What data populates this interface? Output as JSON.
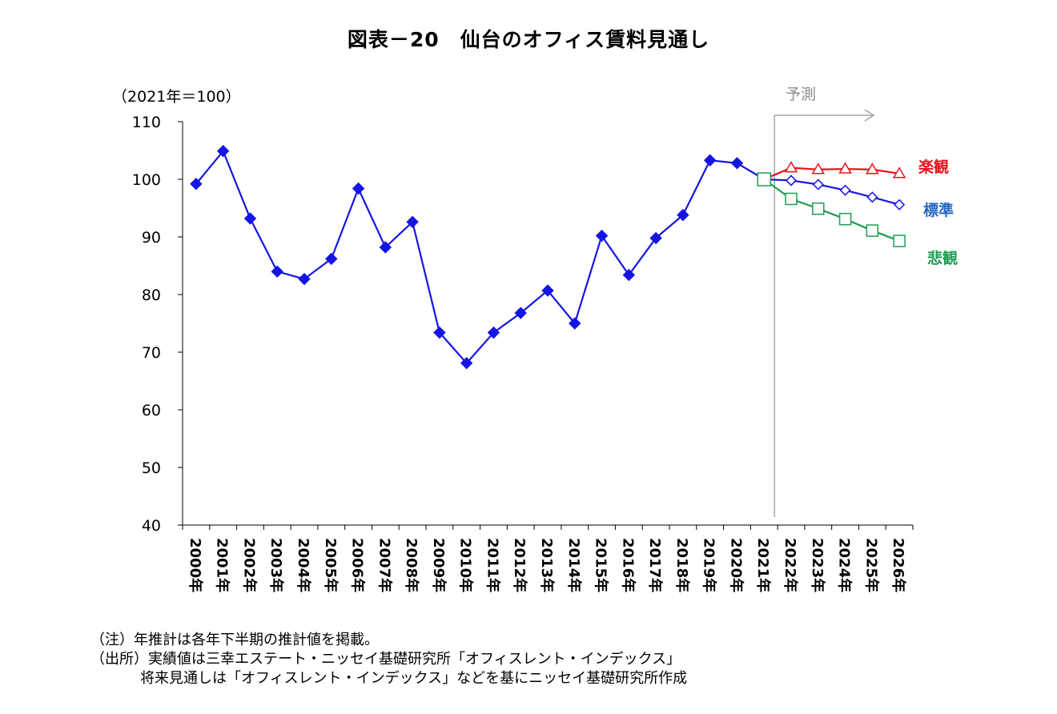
{
  "title": "図表－20　仙台のオフィス賃料見通し",
  "unit_label": "（2021年＝100）",
  "forecast_label": "予測",
  "notes": [
    "（注）年推計は各年下半期の推計値を掲載。",
    "（出所）実績値は三幸エステート・ニッセイ基礎研究所「オフィスレント・インデックス」",
    "将来見通しは「オフィスレント・インデックス」などを基にニッセイ基礎研究所作成"
  ],
  "colors": {
    "actual": "#1414e6",
    "optimistic": "#e8121b",
    "standard": "#1414e6",
    "pessimistic": "#1e9e52",
    "standard_label": "#2466c4",
    "forecast_line": "#a6a6a6"
  },
  "chart_data": {
    "type": "line",
    "categories": [
      "2000年",
      "2001年",
      "2002年",
      "2003年",
      "2004年",
      "2005年",
      "2006年",
      "2007年",
      "2008年",
      "2009年",
      "2010年",
      "2011年",
      "2012年",
      "2013年",
      "2014年",
      "2015年",
      "2016年",
      "2017年",
      "2018年",
      "2019年",
      "2020年",
      "2021年",
      "2022年",
      "2023年",
      "2024年",
      "2025年",
      "2026年"
    ],
    "ylim": [
      40,
      110
    ],
    "yticks": [
      40,
      50,
      60,
      70,
      80,
      90,
      100,
      110
    ],
    "grid": false,
    "series": [
      {
        "key": "actual",
        "marker": "diamond-filled",
        "x": [
          "2000年",
          "2001年",
          "2002年",
          "2003年",
          "2004年",
          "2005年",
          "2006年",
          "2007年",
          "2008年",
          "2009年",
          "2010年",
          "2011年",
          "2012年",
          "2013年",
          "2014年",
          "2015年",
          "2016年",
          "2017年",
          "2018年",
          "2019年",
          "2020年",
          "2021年"
        ],
        "values": [
          99.2,
          104.9,
          93.2,
          84.0,
          82.7,
          86.2,
          98.4,
          88.2,
          92.6,
          73.4,
          68.1,
          73.4,
          76.8,
          80.7,
          75.0,
          90.2,
          83.4,
          89.8,
          93.8,
          103.3,
          102.8,
          100.0
        ]
      },
      {
        "key": "optimistic",
        "name": "楽観",
        "marker": "triangle-open",
        "x": [
          "2021年",
          "2022年",
          "2023年",
          "2024年",
          "2025年",
          "2026年"
        ],
        "values": [
          100.0,
          102.0,
          101.7,
          101.8,
          101.7,
          101.0
        ]
      },
      {
        "key": "standard",
        "name": "標準",
        "marker": "diamond-open",
        "x": [
          "2021年",
          "2022年",
          "2023年",
          "2024年",
          "2025年",
          "2026年"
        ],
        "values": [
          100.0,
          99.8,
          99.1,
          98.1,
          96.9,
          95.6
        ]
      },
      {
        "key": "pessimistic",
        "name": "悲観",
        "marker": "square-open",
        "x": [
          "2021年",
          "2022年",
          "2023年",
          "2024年",
          "2025年",
          "2026年"
        ],
        "values": [
          100.0,
          96.6,
          94.9,
          93.1,
          91.1,
          89.3
        ]
      }
    ]
  }
}
